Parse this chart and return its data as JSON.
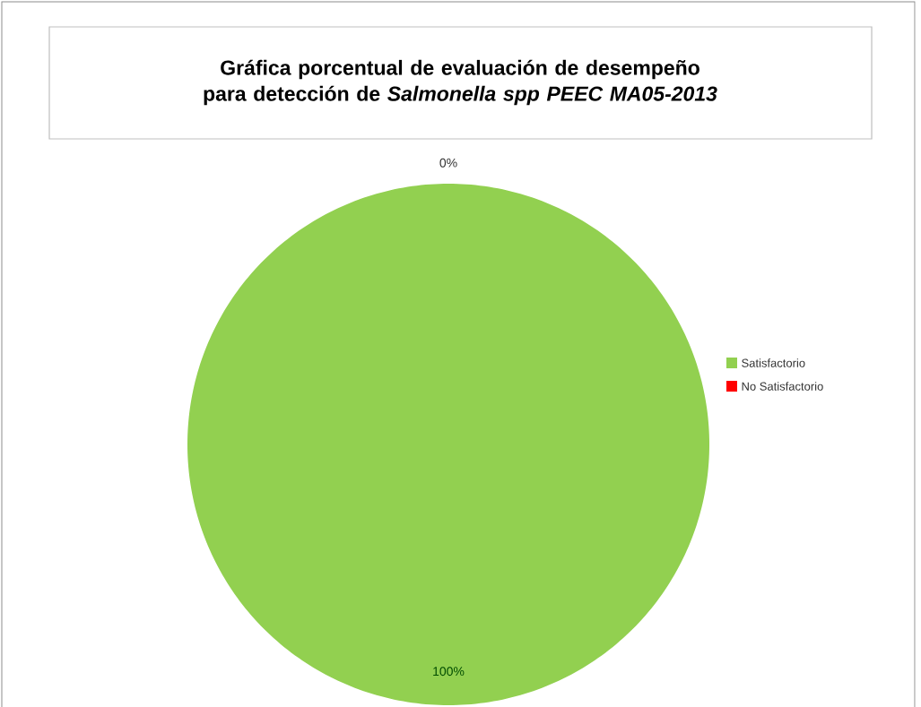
{
  "chart_data": {
    "type": "pie",
    "title": "Gráfica porcentual de evaluación de desempeño para detección de *Salmonella spp PEEC MA05-2013*",
    "categories": [
      "Satisfactorio",
      "No Satisfactorio"
    ],
    "values": [
      100,
      0
    ],
    "colors": [
      "#92d050",
      "#ff0000"
    ],
    "value_labels": [
      "100%",
      "0%"
    ],
    "legend": "right"
  }
}
